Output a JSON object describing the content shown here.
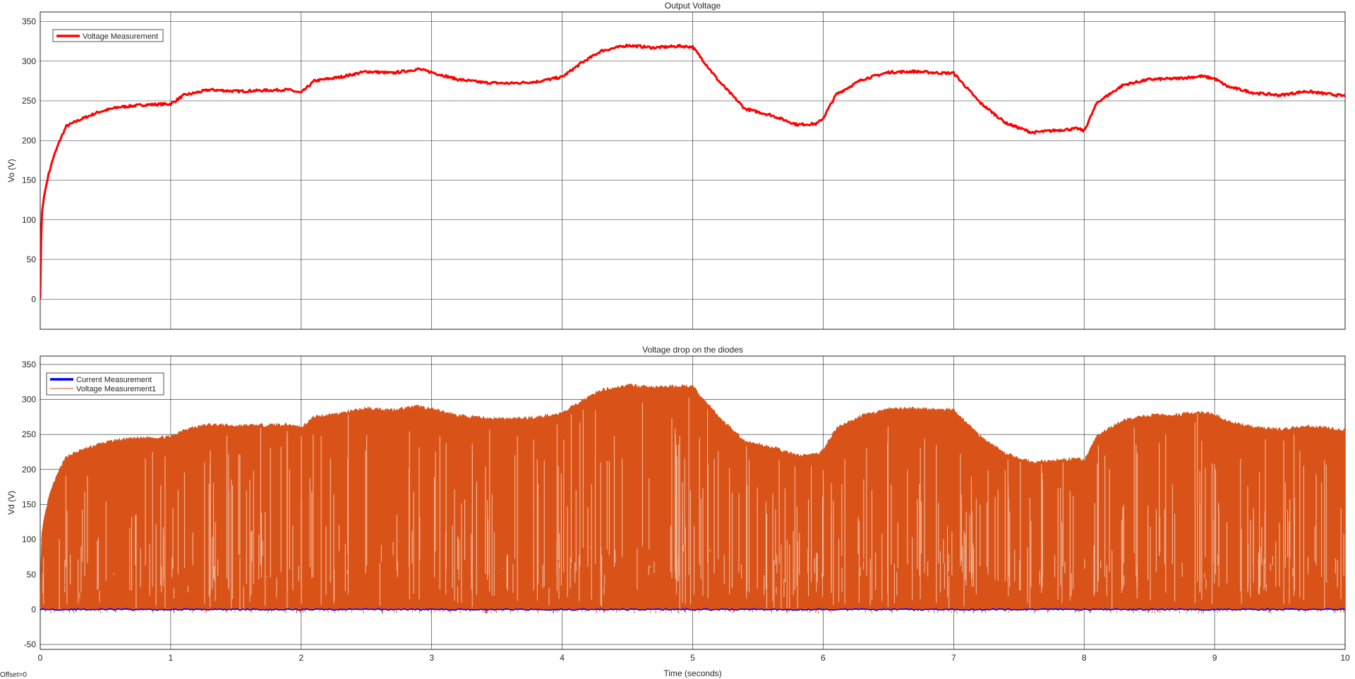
{
  "footer": {
    "offset_label": "Offset=0"
  },
  "colors": {
    "grid": "#262626",
    "vo": "#ff0000",
    "current": "#0000ff",
    "vd": "#d95319",
    "vd_light": "#f2b79b"
  },
  "chart_data": [
    {
      "type": "line",
      "title": "Output Voltage",
      "xlabel": "",
      "ylabel": "Vo (V)",
      "xlim": [
        0,
        10
      ],
      "ylim": [
        -38,
        362
      ],
      "xticks": [
        0,
        1,
        2,
        3,
        4,
        5,
        6,
        7,
        8,
        9,
        10
      ],
      "yticks": [
        0,
        50,
        100,
        150,
        200,
        250,
        300,
        350
      ],
      "grid": true,
      "legend_position": "top-left",
      "series": [
        {
          "name": "Voltage Measurement",
          "color": "#ff0000",
          "x": [
            0,
            0.01,
            0.03,
            0.06,
            0.1,
            0.15,
            0.2,
            0.3,
            0.45,
            0.6,
            0.8,
            1.0,
            1.1,
            1.3,
            1.5,
            1.7,
            1.9,
            2.0,
            2.1,
            2.3,
            2.5,
            2.7,
            2.9,
            3.0,
            3.2,
            3.4,
            3.6,
            3.8,
            4.0,
            4.15,
            4.3,
            4.5,
            4.7,
            4.9,
            5.0,
            5.2,
            5.4,
            5.6,
            5.8,
            5.95,
            6.0,
            6.1,
            6.3,
            6.5,
            6.7,
            6.9,
            7.0,
            7.2,
            7.4,
            7.6,
            7.8,
            7.95,
            8.0,
            8.1,
            8.3,
            8.5,
            8.7,
            8.9,
            9.0,
            9.1,
            9.3,
            9.5,
            9.7,
            9.9,
            10.0
          ],
          "y": [
            0,
            105,
            130,
            155,
            178,
            200,
            218,
            226,
            236,
            242,
            245,
            246,
            257,
            264,
            262,
            263,
            264,
            260,
            275,
            280,
            287,
            285,
            290,
            286,
            277,
            273,
            272,
            274,
            280,
            298,
            313,
            320,
            317,
            319,
            318,
            275,
            240,
            232,
            220,
            221,
            228,
            258,
            277,
            286,
            287,
            285,
            285,
            248,
            222,
            210,
            213,
            215,
            212,
            248,
            270,
            277,
            278,
            281,
            278,
            268,
            260,
            257,
            262,
            258,
            256
          ]
        }
      ]
    },
    {
      "type": "line",
      "title": "Voltage drop on the diodes",
      "xlabel": "Time (seconds)",
      "ylabel": "Vd (V)",
      "xlim": [
        0,
        10
      ],
      "ylim": [
        -57,
        362
      ],
      "xticks": [
        0,
        1,
        2,
        3,
        4,
        5,
        6,
        7,
        8,
        9,
        10
      ],
      "yticks": [
        -50,
        0,
        50,
        100,
        150,
        200,
        250,
        300,
        350
      ],
      "grid": true,
      "legend_position": "top-left",
      "series": [
        {
          "name": "Current Measurement",
          "color": "#0000ff",
          "x": [
            0,
            10
          ],
          "y": [
            0,
            0
          ]
        },
        {
          "name": "Voltage Measurement1",
          "color": "#d95319",
          "note_envelope": "envelope of fast switching between ~0 and the peaks below",
          "x": [
            0,
            0.01,
            0.03,
            0.06,
            0.1,
            0.15,
            0.2,
            0.3,
            0.45,
            0.6,
            0.8,
            1.0,
            1.1,
            1.3,
            1.5,
            1.7,
            1.9,
            2.0,
            2.1,
            2.3,
            2.5,
            2.7,
            2.9,
            3.0,
            3.2,
            3.4,
            3.6,
            3.8,
            4.0,
            4.15,
            4.3,
            4.5,
            4.7,
            4.9,
            5.0,
            5.2,
            5.4,
            5.6,
            5.8,
            5.95,
            6.0,
            6.1,
            6.3,
            6.5,
            6.7,
            6.9,
            7.0,
            7.2,
            7.4,
            7.6,
            7.8,
            7.95,
            8.0,
            8.1,
            8.3,
            8.5,
            8.7,
            8.9,
            9.0,
            9.1,
            9.3,
            9.5,
            9.7,
            9.9,
            10.0
          ],
          "y": [
            0,
            105,
            130,
            155,
            178,
            200,
            218,
            226,
            236,
            242,
            245,
            246,
            257,
            264,
            262,
            263,
            264,
            260,
            275,
            280,
            287,
            285,
            290,
            286,
            277,
            273,
            272,
            274,
            280,
            298,
            313,
            320,
            317,
            319,
            318,
            275,
            240,
            232,
            220,
            221,
            228,
            258,
            277,
            286,
            287,
            285,
            285,
            248,
            222,
            210,
            213,
            215,
            212,
            248,
            270,
            277,
            278,
            281,
            278,
            268,
            260,
            257,
            262,
            258,
            256
          ]
        }
      ]
    }
  ]
}
